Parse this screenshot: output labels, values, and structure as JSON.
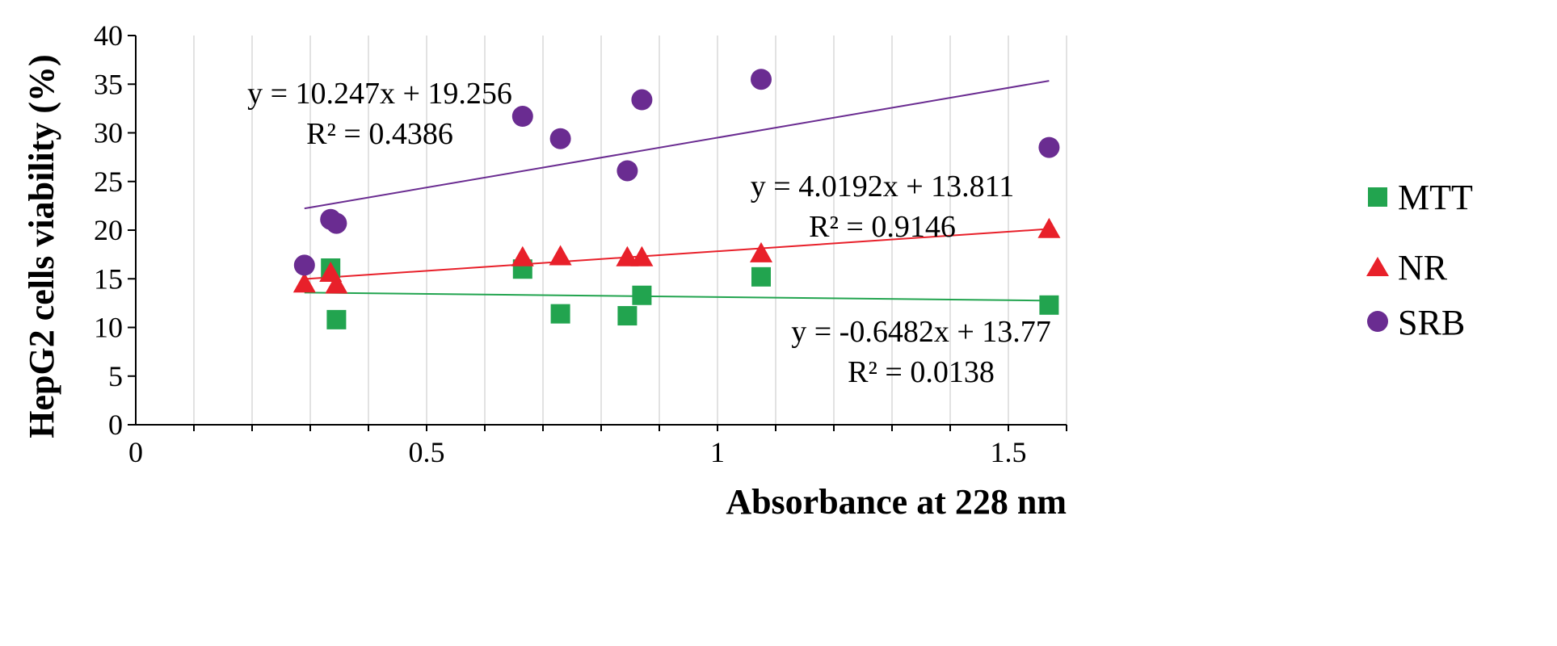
{
  "chart_data": {
    "type": "scatter",
    "xlabel": "Absorbance at 228 nm",
    "ylabel": "HepG2 cells viability (%)",
    "xlim": [
      0,
      1.6
    ],
    "ylim": [
      0,
      40
    ],
    "x_ticks": [
      0,
      0.5,
      1,
      1.5
    ],
    "x_tick_labels": [
      "0",
      "0.5",
      "1",
      "1.5"
    ],
    "y_ticks": [
      0,
      5,
      10,
      15,
      20,
      25,
      30,
      35,
      40
    ],
    "y_tick_labels": [
      "0",
      "5",
      "10",
      "15",
      "20",
      "25",
      "30",
      "35",
      "40"
    ],
    "grid": "vertical",
    "legend_position": "right",
    "series": [
      {
        "name": "MTT",
        "marker": "square",
        "color": "#22a44f",
        "points": [
          {
            "x": 0.335,
            "y": 16.1
          },
          {
            "x": 0.345,
            "y": 10.8
          },
          {
            "x": 0.665,
            "y": 16.0
          },
          {
            "x": 0.73,
            "y": 11.4
          },
          {
            "x": 0.845,
            "y": 11.2
          },
          {
            "x": 0.87,
            "y": 13.3
          },
          {
            "x": 1.075,
            "y": 15.2
          },
          {
            "x": 1.57,
            "y": 12.3
          }
        ],
        "trendline": {
          "slope": -0.6482,
          "intercept": 13.77,
          "x_range": [
            0.29,
            1.57
          ],
          "color": "#22a44f"
        },
        "equation": "y = -0.6482x + 13.77",
        "r2": "R² = 0.0138"
      },
      {
        "name": "NR",
        "marker": "triangle",
        "color": "#e8202a",
        "points": [
          {
            "x": 0.29,
            "y": 14.5
          },
          {
            "x": 0.335,
            "y": 15.6
          },
          {
            "x": 0.345,
            "y": 14.4
          },
          {
            "x": 0.665,
            "y": 17.2
          },
          {
            "x": 0.73,
            "y": 17.3
          },
          {
            "x": 0.845,
            "y": 17.2
          },
          {
            "x": 0.87,
            "y": 17.2
          },
          {
            "x": 1.075,
            "y": 17.6
          },
          {
            "x": 1.57,
            "y": 20.1
          }
        ],
        "trendline": {
          "slope": 4.0192,
          "intercept": 13.811,
          "x_range": [
            0.29,
            1.57
          ],
          "color": "#e8202a"
        },
        "equation": "y = 4.0192x + 13.811",
        "r2": "R² = 0.9146"
      },
      {
        "name": "SRB",
        "marker": "circle",
        "color": "#6a2c91",
        "points": [
          {
            "x": 0.29,
            "y": 16.4
          },
          {
            "x": 0.335,
            "y": 21.1
          },
          {
            "x": 0.345,
            "y": 20.7
          },
          {
            "x": 0.665,
            "y": 31.7
          },
          {
            "x": 0.73,
            "y": 29.4
          },
          {
            "x": 0.845,
            "y": 26.1
          },
          {
            "x": 0.87,
            "y": 33.4
          },
          {
            "x": 1.075,
            "y": 35.5
          },
          {
            "x": 1.57,
            "y": 28.5
          }
        ],
        "trendline": {
          "slope": 10.247,
          "intercept": 19.256,
          "x_range": [
            0.29,
            1.57
          ],
          "color": "#6a2c91"
        },
        "equation": "y = 10.247x + 19.256",
        "r2": "R² = 0.4386"
      }
    ]
  }
}
